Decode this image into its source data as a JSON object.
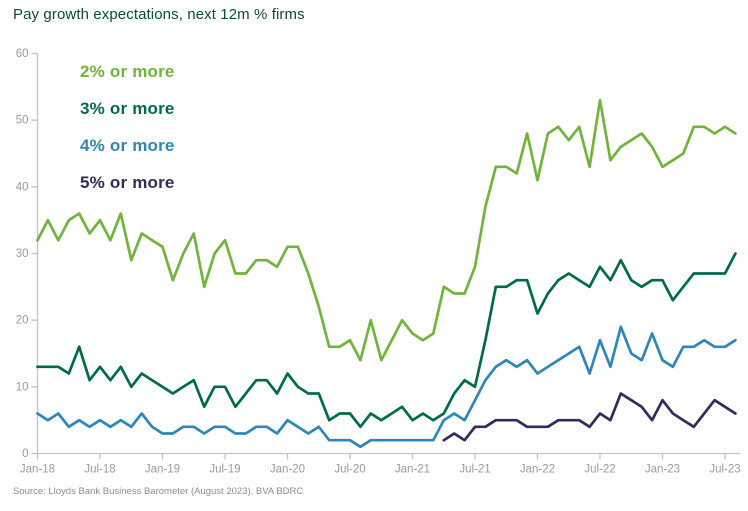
{
  "title": "Pay growth expectations, next 12m % firms",
  "source": "Source: Lloyds Bank Business Barometer (August 2023), BVA BDRC",
  "colors": {
    "title_text": "#0b4a3e",
    "source_text": "#8c8c8c",
    "axis_line": "#c4c4c4",
    "tick_label": "#9b9b9b",
    "series_2pct": "#6fb53c",
    "series_3pct": "#006a4d",
    "series_4pct": "#2e87b8",
    "series_5pct": "#352a5e"
  },
  "chart_data": {
    "type": "line",
    "title": "Pay growth expectations, next 12m % firms",
    "grid": false,
    "legend_position": "top-left-inside",
    "ylim": [
      0,
      60
    ],
    "y_ticks": [
      0,
      10,
      20,
      30,
      40,
      50,
      60
    ],
    "x_tick_indices": [
      0,
      6,
      12,
      18,
      24,
      30,
      36,
      42,
      48,
      54,
      60,
      66
    ],
    "categories": [
      "Jan-18",
      "Feb-18",
      "Mar-18",
      "Apr-18",
      "May-18",
      "Jun-18",
      "Jul-18",
      "Aug-18",
      "Sep-18",
      "Oct-18",
      "Nov-18",
      "Dec-18",
      "Jan-19",
      "Feb-19",
      "Mar-19",
      "Apr-19",
      "May-19",
      "Jun-19",
      "Jul-19",
      "Aug-19",
      "Sep-19",
      "Oct-19",
      "Nov-19",
      "Dec-19",
      "Jan-20",
      "Feb-20",
      "Mar-20",
      "Apr-20",
      "May-20",
      "Jun-20",
      "Jul-20",
      "Aug-20",
      "Sep-20",
      "Oct-20",
      "Nov-20",
      "Dec-20",
      "Jan-21",
      "Feb-21",
      "Mar-21",
      "Apr-21",
      "May-21",
      "Jun-21",
      "Jul-21",
      "Aug-21",
      "Sep-21",
      "Oct-21",
      "Nov-21",
      "Dec-21",
      "Jan-22",
      "Feb-22",
      "Mar-22",
      "Apr-22",
      "May-22",
      "Jun-22",
      "Jul-22",
      "Aug-22",
      "Sep-22",
      "Oct-22",
      "Nov-22",
      "Dec-22",
      "Jan-23",
      "Feb-23",
      "Mar-23",
      "Apr-23",
      "May-23",
      "Jun-23",
      "Jul-23",
      "Aug-23"
    ],
    "series": [
      {
        "name": "2% or more",
        "color": "#6fb53c",
        "values": [
          32,
          35,
          32,
          35,
          36,
          33,
          35,
          32,
          36,
          29,
          33,
          32,
          31,
          26,
          30,
          33,
          25,
          30,
          32,
          27,
          27,
          29,
          29,
          28,
          31,
          31,
          27,
          22,
          16,
          16,
          17,
          14,
          20,
          14,
          17,
          20,
          18,
          17,
          18,
          25,
          24,
          24,
          28,
          37,
          43,
          43,
          42,
          48,
          41,
          48,
          49,
          47,
          49,
          43,
          53,
          44,
          46,
          47,
          48,
          46,
          43,
          44,
          45,
          49,
          49,
          48,
          49,
          48
        ]
      },
      {
        "name": "3% or more",
        "color": "#006a4d",
        "values": [
          13,
          13,
          13,
          12,
          16,
          11,
          13,
          11,
          13,
          10,
          12,
          11,
          10,
          9,
          10,
          11,
          7,
          10,
          10,
          7,
          9,
          11,
          11,
          9,
          12,
          10,
          9,
          9,
          5,
          6,
          6,
          4,
          6,
          5,
          6,
          7,
          5,
          6,
          5,
          6,
          9,
          11,
          10,
          17,
          25,
          25,
          26,
          26,
          21,
          24,
          26,
          27,
          26,
          25,
          28,
          26,
          29,
          26,
          25,
          26,
          26,
          23,
          25,
          27,
          27,
          27,
          27,
          30
        ]
      },
      {
        "name": "4% or more",
        "color": "#2e87b8",
        "values": [
          6,
          5,
          6,
          4,
          5,
          4,
          5,
          4,
          5,
          4,
          6,
          4,
          3,
          3,
          4,
          4,
          3,
          4,
          4,
          3,
          3,
          4,
          4,
          3,
          5,
          4,
          3,
          4,
          2,
          2,
          2,
          1,
          2,
          2,
          2,
          2,
          2,
          2,
          2,
          5,
          6,
          5,
          8,
          11,
          13,
          14,
          13,
          14,
          12,
          13,
          14,
          15,
          16,
          12,
          17,
          13,
          19,
          15,
          14,
          18,
          14,
          13,
          16,
          16,
          17,
          16,
          16,
          17
        ]
      },
      {
        "name": "5% or more",
        "color": "#352a5e",
        "values": [
          null,
          null,
          null,
          null,
          null,
          null,
          null,
          null,
          null,
          null,
          null,
          null,
          null,
          null,
          null,
          null,
          null,
          null,
          null,
          null,
          null,
          null,
          null,
          null,
          null,
          null,
          null,
          null,
          null,
          null,
          null,
          null,
          null,
          null,
          null,
          null,
          null,
          null,
          null,
          2,
          3,
          2,
          4,
          4,
          5,
          5,
          5,
          4,
          4,
          4,
          5,
          5,
          5,
          4,
          6,
          5,
          9,
          8,
          7,
          5,
          8,
          6,
          5,
          4,
          6,
          8,
          7,
          6
        ]
      }
    ]
  }
}
